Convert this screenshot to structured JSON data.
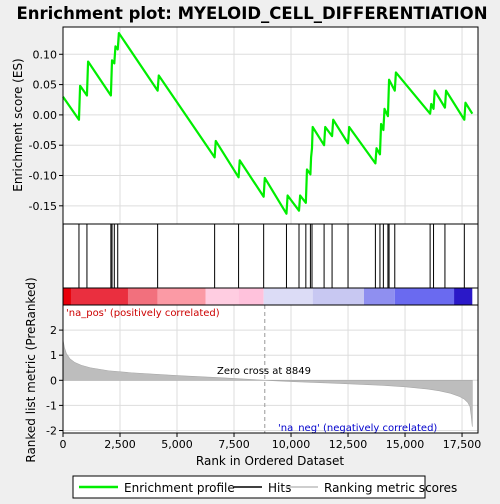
{
  "chart_data": {
    "type": "line",
    "title": "Enrichment plot: MYELOID_CELL_DIFFERENTIATION",
    "es_panel": {
      "ylabel": "Enrichment score (ES)",
      "ylim": [
        -0.18,
        0.145
      ],
      "yticks": [
        0.1,
        0.05,
        0.0,
        -0.05,
        -0.1,
        -0.15
      ],
      "ytick_labels": [
        "0.10",
        "0.05",
        "0.00",
        "-0.05",
        "-0.10",
        "-0.15"
      ],
      "grid": true,
      "series": {
        "color": "#00ee00",
        "x": [
          0,
          700,
          750,
          1050,
          1100,
          2100,
          2150,
          2250,
          2300,
          2400,
          2450,
          4150,
          4200,
          6650,
          6700,
          7700,
          7750,
          8800,
          8850,
          9800,
          9850,
          10350,
          10400,
          10650,
          10700,
          10850,
          10880,
          10920,
          10950,
          11450,
          11500,
          11800,
          11850,
          12500,
          12550,
          13700,
          13750,
          13900,
          13950,
          14050,
          14100,
          14250,
          14300,
          14550,
          14600,
          16100,
          16150,
          16250,
          16300,
          16750,
          16800,
          17600,
          17650,
          17950
        ],
        "y": [
          0.03,
          -0.008,
          0.048,
          0.032,
          0.088,
          0.032,
          0.09,
          0.085,
          0.113,
          0.108,
          0.135,
          0.04,
          0.065,
          -0.07,
          -0.043,
          -0.103,
          -0.075,
          -0.135,
          -0.104,
          -0.163,
          -0.133,
          -0.158,
          -0.133,
          -0.145,
          -0.09,
          -0.098,
          -0.07,
          -0.055,
          -0.02,
          -0.05,
          -0.02,
          -0.035,
          -0.008,
          -0.047,
          -0.02,
          -0.08,
          -0.055,
          -0.065,
          -0.015,
          -0.025,
          0.01,
          -0.002,
          0.058,
          0.04,
          0.07,
          0.002,
          0.018,
          0.01,
          0.04,
          0.012,
          0.04,
          -0.008,
          0.02,
          0.002
        ]
      }
    },
    "hits": [
      5,
      700,
      1050,
      2100,
      2150,
      2250,
      2400,
      4150,
      6650,
      7700,
      8800,
      9800,
      10350,
      10650,
      10850,
      10920,
      11450,
      11800,
      12500,
      13700,
      13900,
      14050,
      14250,
      14300,
      14550,
      16100,
      16250,
      16750,
      17600
    ],
    "heat_bar": {
      "segments": [
        {
          "from": 0,
          "to": 350,
          "color": "#e8000a"
        },
        {
          "from": 350,
          "to": 2850,
          "color": "#ea2f3f"
        },
        {
          "from": 2850,
          "to": 4150,
          "color": "#f2707d"
        },
        {
          "from": 4150,
          "to": 6250,
          "color": "#fb9aa5"
        },
        {
          "from": 6250,
          "to": 7700,
          "color": "#ffcde1"
        },
        {
          "from": 7700,
          "to": 8800,
          "color": "#ffc2dc"
        },
        {
          "from": 8800,
          "to": 10950,
          "color": "#dcdcf6"
        },
        {
          "from": 10950,
          "to": 13200,
          "color": "#c8c8f2"
        },
        {
          "from": 13200,
          "to": 14550,
          "color": "#8f8ff0"
        },
        {
          "from": 14550,
          "to": 17150,
          "color": "#6a6af0"
        },
        {
          "from": 17150,
          "to": 17950,
          "color": "#2a18c8"
        }
      ]
    },
    "metric_panel": {
      "ylabel": "Ranked list metric (PreRanked)",
      "ylim": [
        -2.1,
        3.0
      ],
      "yticks": [
        2,
        1,
        0,
        -1,
        -2
      ],
      "ytick_labels": [
        "2",
        "1",
        "0",
        "-1",
        "-2"
      ],
      "x": [
        0,
        60,
        150,
        300,
        500,
        800,
        1200,
        2000,
        3000,
        5000,
        7000,
        8849,
        10000,
        12000,
        14000,
        15000,
        16000,
        16500,
        17000,
        17400,
        17600,
        17750,
        17850,
        17900,
        17950
      ],
      "y": [
        1.62,
        1.32,
        1.06,
        0.86,
        0.72,
        0.6,
        0.5,
        0.38,
        0.3,
        0.19,
        0.1,
        0.0,
        -0.05,
        -0.12,
        -0.2,
        -0.26,
        -0.35,
        -0.42,
        -0.52,
        -0.65,
        -0.75,
        -0.88,
        -1.05,
        -1.4,
        -1.85
      ],
      "zero_cross_label": "Zero cross at 8849",
      "zero_cross": 8849,
      "pos_label": "'na_pos' (positively correlated)",
      "neg_label": "'na_neg' (negatively correlated)"
    },
    "xlabel": "Rank in Ordered Dataset",
    "xlim": [
      0,
      18200
    ],
    "xticks": [
      0,
      2500,
      5000,
      7500,
      10000,
      12500,
      15000,
      17500
    ],
    "xtick_labels": [
      "0",
      "2,500",
      "5,000",
      "7,500",
      "10,000",
      "12,500",
      "15,000",
      "17,500"
    ],
    "legend": {
      "placement": "bottom",
      "items": [
        "Enrichment profile",
        "Hits",
        "Ranking metric scores"
      ]
    }
  }
}
